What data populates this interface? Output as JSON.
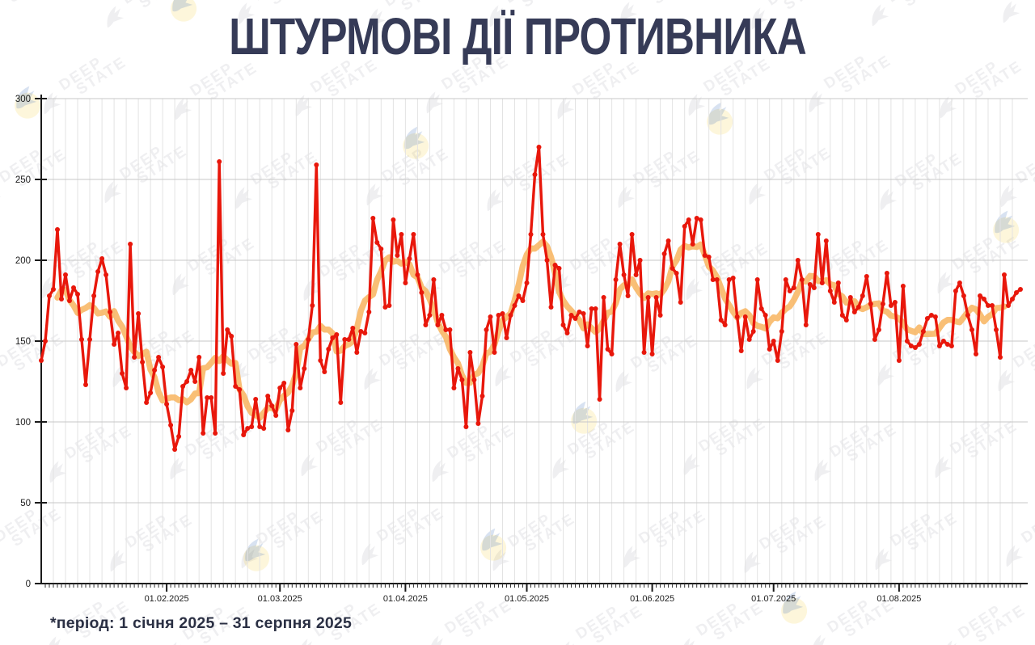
{
  "title": "ШТУРМОВІ ДІЇ ПРОТИВНИКА",
  "footnote": "*період: 1 січня 2025 – 31 серпня 2025",
  "watermark": {
    "line1": "DEEP",
    "line2": "STATE"
  },
  "colors": {
    "title": "#363b57",
    "daily_line": "#e8170b",
    "trend_line": "#f8b45e",
    "axis": "#1a1a1a",
    "grid_vertical": "#e3e3e3",
    "grid_horizontal": "#c7c7c7",
    "tick_label": "#1c1c1c",
    "watermark_yellow": "#f5c51e",
    "watermark_blue": "#3c6fb8"
  },
  "chart_data": {
    "type": "line",
    "title": "ШТУРМОВІ ДІЇ ПРОТИВНИКА",
    "period_start": "2025-01-01",
    "period_end": "2025-08-31",
    "ylim": [
      0,
      300
    ],
    "y_ticks": [
      0,
      50,
      100,
      150,
      200,
      250,
      300
    ],
    "x_tick_labels": [
      "01.02.2025",
      "01.03.2025",
      "01.04.2025",
      "01.05.2025",
      "01.06.2025",
      "01.07.2025",
      "01.08.2025"
    ],
    "month_start_indices": [
      31,
      59,
      90,
      120,
      151,
      181,
      212
    ],
    "grid": {
      "vertical_every_days": 3,
      "horizontal_at": [
        50,
        100,
        150,
        200,
        250,
        300
      ]
    },
    "legend_position": "none",
    "series": [
      {
        "name": "daily-assault-actions",
        "color": "#e8170b",
        "marker": "circle",
        "values": [
          138,
          150,
          178,
          182,
          219,
          176,
          191,
          175,
          183,
          179,
          151,
          123,
          151,
          178,
          193,
          201,
          191,
          168,
          148,
          155,
          130,
          121,
          210,
          140,
          167,
          137,
          112,
          118,
          132,
          140,
          134,
          111,
          98,
          83,
          91,
          122,
          125,
          132,
          125,
          140,
          93,
          115,
          115,
          93,
          261,
          130,
          157,
          153,
          122,
          120,
          92,
          96,
          97,
          114,
          97,
          96,
          116,
          110,
          104,
          121,
          124,
          95,
          107,
          148,
          121,
          133,
          151,
          172,
          259,
          138,
          131,
          145,
          152,
          154,
          112,
          151,
          151,
          158,
          143,
          156,
          155,
          168,
          226,
          211,
          207,
          171,
          172,
          225,
          203,
          216,
          186,
          201,
          216,
          191,
          180,
          160,
          166,
          188,
          160,
          166,
          157,
          157,
          121,
          133,
          126,
          97,
          143,
          126,
          99,
          116,
          157,
          165,
          143,
          166,
          167,
          152,
          166,
          172,
          178,
          175,
          186,
          216,
          253,
          270,
          216,
          200,
          171,
          197,
          195,
          160,
          155,
          166,
          164,
          168,
          167,
          147,
          170,
          170,
          114,
          177,
          145,
          142,
          188,
          210,
          191,
          178,
          216,
          191,
          200,
          143,
          177,
          142,
          177,
          166,
          204,
          212,
          195,
          192,
          174,
          221,
          225,
          210,
          226,
          225,
          203,
          202,
          188,
          188,
          163,
          160,
          188,
          189,
          165,
          144,
          165,
          151,
          156,
          188,
          170,
          166,
          145,
          150,
          138,
          156,
          188,
          181,
          183,
          200,
          188,
          160,
          185,
          183,
          216,
          186,
          212,
          181,
          174,
          186,
          166,
          163,
          177,
          168,
          171,
          178,
          190,
          173,
          151,
          157,
          173,
          192,
          172,
          174,
          138,
          184,
          150,
          147,
          146,
          148,
          156,
          164,
          166,
          165,
          147,
          150,
          148,
          147,
          181,
          186,
          178,
          166,
          157,
          142,
          178,
          176,
          172,
          172,
          157,
          140,
          191,
          172,
          176,
          180,
          182
        ]
      },
      {
        "name": "smoothed-trend",
        "color": "#f8b45e",
        "derived": "centered_moving_average",
        "window": 9
      }
    ]
  }
}
